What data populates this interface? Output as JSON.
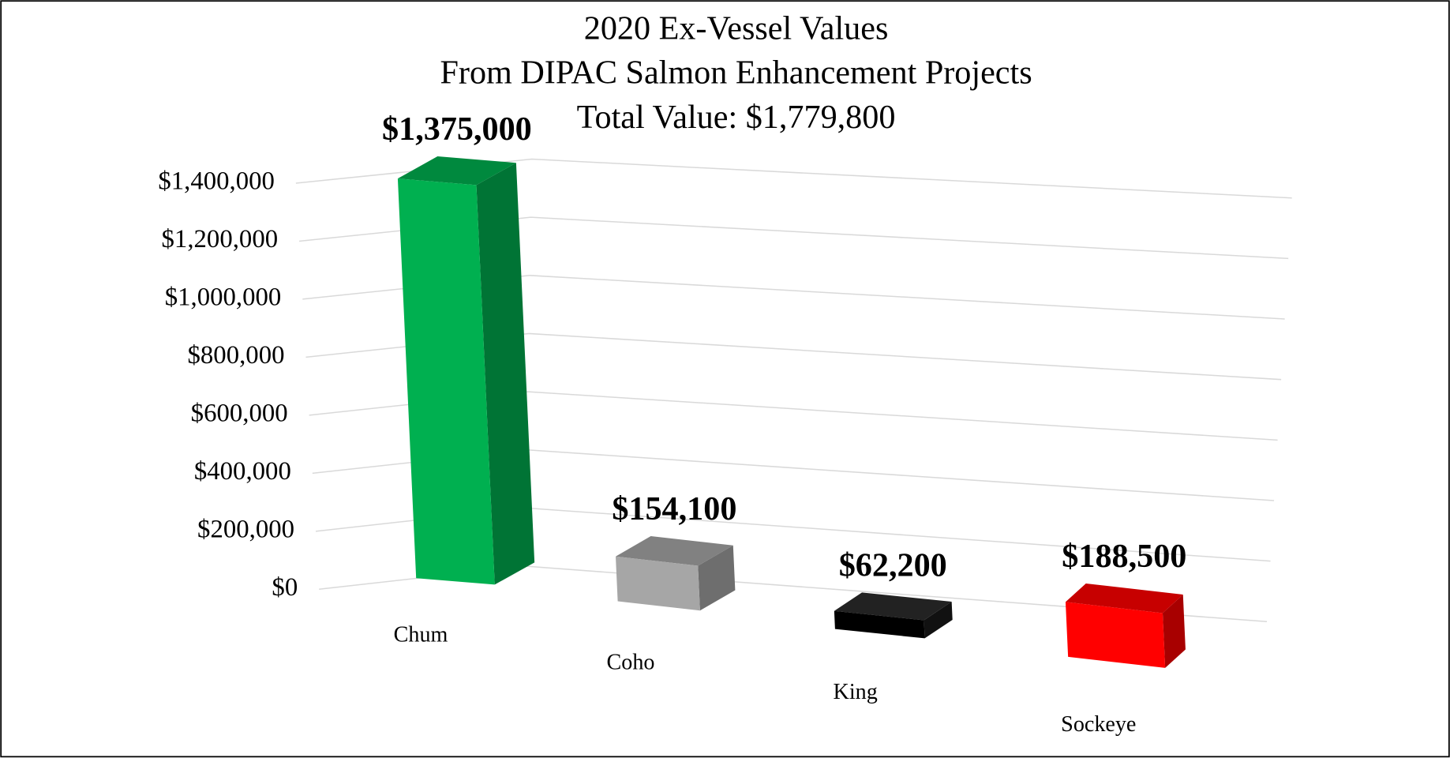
{
  "chart_data": {
    "type": "bar3d",
    "title": "2020 Ex-Vessel Values",
    "subtitle": [
      "From DIPAC Salmon Enhancement Projects",
      "Total Value: $1,779,800"
    ],
    "categories": [
      "Chum",
      "Coho",
      "King",
      "Sockeye"
    ],
    "values": [
      1375000,
      154100,
      62200,
      188500
    ],
    "value_labels": [
      "$1,375,000",
      "$154,100",
      "$62,200",
      "$188,500"
    ],
    "colors": [
      "#00b050",
      "#a6a6a6",
      "#000000",
      "#ff0000"
    ],
    "ylim": [
      0,
      1400000
    ],
    "yticks": [
      {
        "value": 0,
        "label": "$0"
      },
      {
        "value": 200000,
        "label": "$200,000"
      },
      {
        "value": 400000,
        "label": "$400,000"
      },
      {
        "value": 600000,
        "label": "$600,000"
      },
      {
        "value": 800000,
        "label": "$800,000"
      },
      {
        "value": 1000000,
        "label": "$1,000,000"
      },
      {
        "value": 1200000,
        "label": "$1,200,000"
      },
      {
        "value": 1400000,
        "label": "$1,400,000"
      }
    ],
    "grid": true
  }
}
